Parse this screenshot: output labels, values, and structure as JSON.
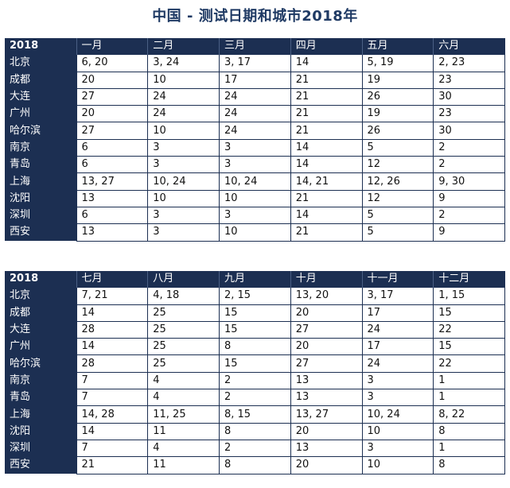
{
  "title": "中国 - 测试日期和城市2018年",
  "tables": [
    {
      "year": "2018",
      "months": [
        "一月",
        "二月",
        "三月",
        "四月",
        "五月",
        "六月"
      ],
      "rows": [
        {
          "city": "北京",
          "values": [
            "6, 20",
            "3, 24",
            "3, 17",
            "14",
            "5, 19",
            "2, 23"
          ]
        },
        {
          "city": "成都",
          "values": [
            "20",
            "10",
            "17",
            "21",
            "19",
            "23"
          ]
        },
        {
          "city": "大连",
          "values": [
            "27",
            "24",
            "24",
            "21",
            "26",
            "30"
          ]
        },
        {
          "city": "广州",
          "values": [
            "20",
            "24",
            "24",
            "21",
            "19",
            "23"
          ]
        },
        {
          "city": "哈尔滨",
          "values": [
            "27",
            "10",
            "24",
            "21",
            "26",
            "30"
          ]
        },
        {
          "city": "南京",
          "values": [
            "6",
            "3",
            "3",
            "14",
            "5",
            "2"
          ]
        },
        {
          "city": "青岛",
          "values": [
            "6",
            "3",
            "3",
            "14",
            "12",
            "2"
          ]
        },
        {
          "city": "上海",
          "values": [
            "13, 27",
            "10, 24",
            "10, 24",
            "14, 21",
            "12, 26",
            "9, 30"
          ]
        },
        {
          "city": "沈阳",
          "values": [
            "13",
            "10",
            "10",
            "21",
            "12",
            "9"
          ]
        },
        {
          "city": "深圳",
          "values": [
            "6",
            "3",
            "3",
            "14",
            "5",
            "2"
          ]
        },
        {
          "city": "西安",
          "values": [
            "13",
            "3",
            "10",
            "21",
            "5",
            "9"
          ]
        }
      ]
    },
    {
      "year": "2018",
      "months": [
        "七月",
        "八月",
        "九月",
        "十月",
        "十一月",
        "十二月"
      ],
      "rows": [
        {
          "city": "北京",
          "values": [
            "7, 21",
            "4, 18",
            "2, 15",
            "13, 20",
            "3, 17",
            "1, 15"
          ]
        },
        {
          "city": "成都",
          "values": [
            "14",
            "25",
            "15",
            "20",
            "17",
            "15"
          ]
        },
        {
          "city": "大连",
          "values": [
            "28",
            "25",
            "15",
            "27",
            "24",
            "22"
          ]
        },
        {
          "city": "广州",
          "values": [
            "14",
            "25",
            "8",
            "20",
            "17",
            "15"
          ]
        },
        {
          "city": "哈尔滨",
          "values": [
            "28",
            "25",
            "15",
            "27",
            "24",
            "22"
          ]
        },
        {
          "city": "南京",
          "values": [
            "7",
            "4",
            "2",
            "13",
            "3",
            "1"
          ]
        },
        {
          "city": "青岛",
          "values": [
            "7",
            "4",
            "2",
            "13",
            "3",
            "1"
          ]
        },
        {
          "city": "上海",
          "values": [
            "14, 28",
            "11, 25",
            "8, 15",
            "13, 27",
            "10, 24",
            "8, 22"
          ]
        },
        {
          "city": "沈阳",
          "values": [
            "14",
            "11",
            "8",
            "20",
            "10",
            "8"
          ]
        },
        {
          "city": "深圳",
          "values": [
            "7",
            "4",
            "2",
            "13",
            "3",
            "1"
          ]
        },
        {
          "city": "西安",
          "values": [
            "21",
            "11",
            "8",
            "20",
            "10",
            "8"
          ]
        }
      ]
    }
  ]
}
